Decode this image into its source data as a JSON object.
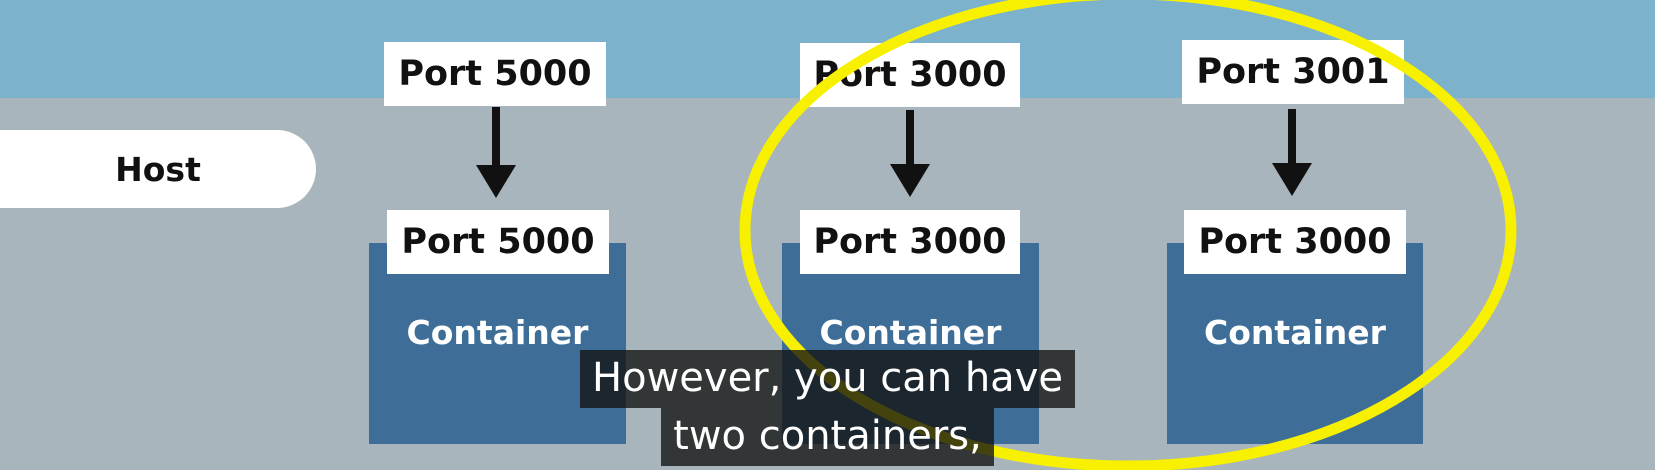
{
  "host": {
    "label": "Host"
  },
  "mappings": [
    {
      "host_port": "Port 5000",
      "container_port": "Port 5000",
      "container_label": "Container"
    },
    {
      "host_port": "Port 3000",
      "container_port": "Port 3000",
      "container_label": "Container"
    },
    {
      "host_port": "Port 3001",
      "container_port": "Port 3000",
      "container_label": "Container"
    }
  ],
  "subtitle": {
    "line1": "However, you can have",
    "line2": "two containers,"
  },
  "colors": {
    "top_band": "#7cb2cb",
    "background": "#a8b5bc",
    "container": "#3e6e98",
    "highlight": "#f7f000",
    "subtitle_bg": "#1e1e1e"
  }
}
